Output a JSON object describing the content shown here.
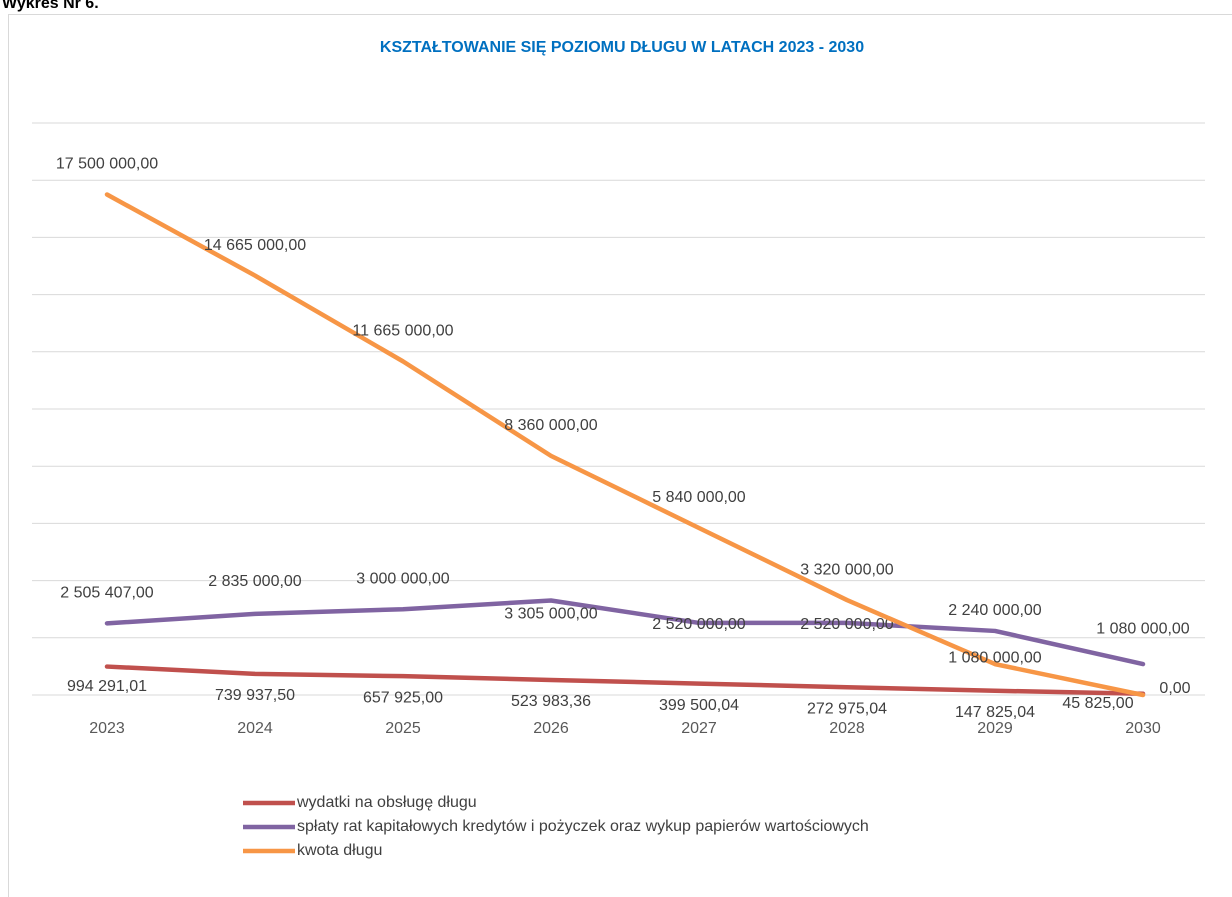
{
  "heading": "Wykres Nr 6.",
  "chart_data": {
    "type": "line",
    "title": "KSZTAŁTOWANIE SIĘ POZIOMU DŁUGU W LATACH 2023 - 2030",
    "categories": [
      "2023",
      "2024",
      "2025",
      "2026",
      "2027",
      "2028",
      "2029",
      "2030"
    ],
    "ylim": [
      0,
      20000000
    ],
    "yticks": [
      0,
      2000000,
      4000000,
      6000000,
      8000000,
      10000000,
      12000000,
      14000000,
      16000000,
      18000000,
      20000000
    ],
    "grid": true,
    "legend": "bottom",
    "series": [
      {
        "name": "wydatki na obsługę długu",
        "color": "#c0504d",
        "values": [
          994291.01,
          739937.5,
          657925,
          523983.36,
          399500.04,
          272975.04,
          147825.04,
          45825
        ],
        "value_labels": [
          "994 291,01",
          "739 937,50",
          "657 925,00",
          "523 983,36",
          "399 500,04",
          "272 975,04",
          "147 825,04",
          "45 825,00"
        ]
      },
      {
        "name": "spłaty rat kapitałowych kredytów i pożyczek oraz wykup papierów wartościowych",
        "color": "#8064a2",
        "values": [
          2505407,
          2835000,
          3000000,
          3305000,
          2520000,
          2520000,
          2240000,
          1080000
        ],
        "value_labels": [
          "2 505 407,00",
          "2 835 000,00",
          "3 000 000,00",
          "3 305 000,00",
          "2 520 000,00",
          "2 520 000,00",
          "2 240 000,00",
          "1 080 000,00"
        ]
      },
      {
        "name": "kwota długu",
        "color": "#f79646",
        "values": [
          17500000,
          14665000,
          11665000,
          8360000,
          5840000,
          3320000,
          1080000,
          0
        ],
        "value_labels": [
          "17 500 000,00",
          "14 665 000,00",
          "11 665 000,00",
          "8 360 000,00",
          "5 840 000,00",
          "3 320 000,00",
          "1 080 000,00",
          "0,00"
        ]
      }
    ]
  }
}
